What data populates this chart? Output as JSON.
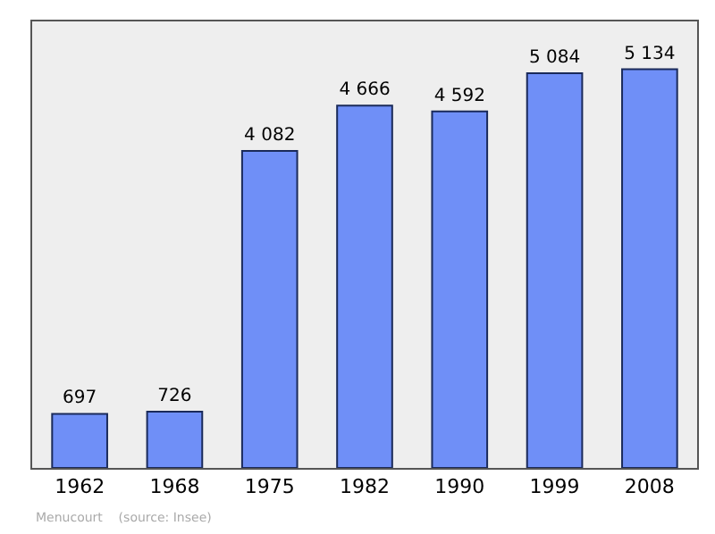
{
  "chart_data": {
    "type": "bar",
    "categories": [
      "1962",
      "1968",
      "1975",
      "1982",
      "1990",
      "1999",
      "2008"
    ],
    "series": [
      {
        "color": "#6f8ff7",
        "values": [
          697,
          726,
          4082,
          4666,
          4592,
          5084,
          5134
        ],
        "value_labels": [
          "697",
          "726",
          "4 082",
          "4 666",
          "4 592",
          "5 084",
          "5 134"
        ]
      }
    ],
    "tick_labels": "x",
    "grid": false,
    "legend": false,
    "annotations": [
      "Menucourt    (source: Insee)"
    ]
  }
}
